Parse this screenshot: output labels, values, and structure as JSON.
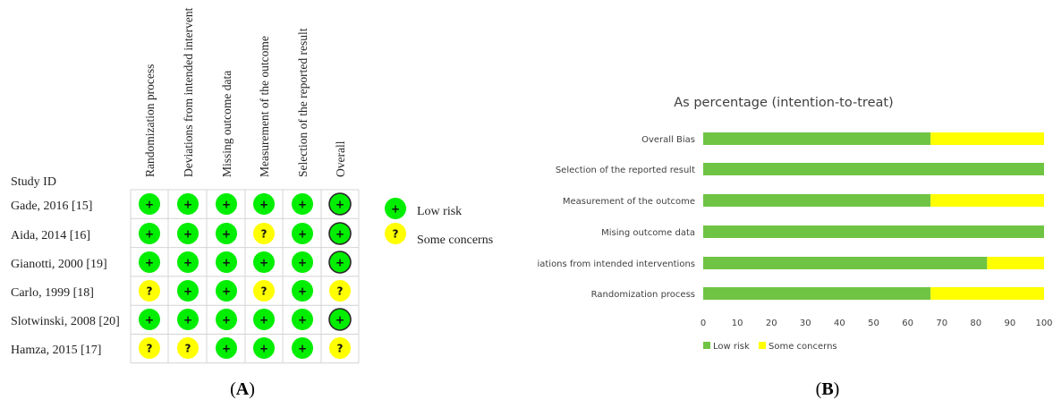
{
  "panel_a": {
    "label": "(A)",
    "letter": "A",
    "row_header": "Study ID",
    "columns": [
      "Randomization process",
      "Deviations from intended intervent",
      "Missing outcome data",
      "Measurement of the outcome",
      "Selection of the reported result",
      "Overall"
    ],
    "studies": [
      {
        "name": "Gade, 2016 [15]",
        "judgements": [
          "+",
          "+",
          "+",
          "+",
          "+",
          "+"
        ]
      },
      {
        "name": "Aida, 2014 [16]",
        "judgements": [
          "+",
          "+",
          "+",
          "?",
          "+",
          "+"
        ]
      },
      {
        "name": "Gianotti, 2000 [19]",
        "judgements": [
          "+",
          "+",
          "+",
          "+",
          "+",
          "+"
        ]
      },
      {
        "name": "Carlo, 1999 [18]",
        "judgements": [
          "?",
          "+",
          "+",
          "?",
          "+",
          "?"
        ]
      },
      {
        "name": "Slotwinski, 2008 [20]",
        "judgements": [
          "+",
          "+",
          "+",
          "+",
          "+",
          "+"
        ]
      },
      {
        "name": "Hamza, 2015 [17]",
        "judgements": [
          "?",
          "?",
          "+",
          "+",
          "+",
          "?"
        ]
      }
    ],
    "legend": [
      {
        "symbol": "+",
        "label": "Low risk",
        "color": "#00ee00"
      },
      {
        "symbol": "?",
        "label": "Some concerns",
        "color": "#ffff00"
      }
    ]
  },
  "chart_data": {
    "type": "bar",
    "orientation": "horizontal",
    "stacked": true,
    "title": "As percentage (intention-to-treat)",
    "categories": [
      "Overall Bias",
      "Selection of the reported result",
      "Measurement of the outcome",
      "Mising outcome data",
      "Deviations from intended interventions",
      "Randomization process"
    ],
    "series": [
      {
        "name": "Low risk",
        "color": "#70c444",
        "values": [
          66.7,
          100,
          66.7,
          100,
          83.3,
          66.7
        ]
      },
      {
        "name": "Some concerns",
        "color": "#ffff00",
        "values": [
          33.3,
          0,
          33.3,
          0,
          16.7,
          33.3
        ]
      }
    ],
    "xlim": [
      0,
      100
    ],
    "xticks": [
      "0",
      "10",
      "20",
      "30",
      "40",
      "50",
      "60",
      "70",
      "80",
      "90",
      "100"
    ],
    "grid": false,
    "legend_position": "bottom-left"
  },
  "panel_b": {
    "label": "(B)",
    "letter": "B"
  }
}
